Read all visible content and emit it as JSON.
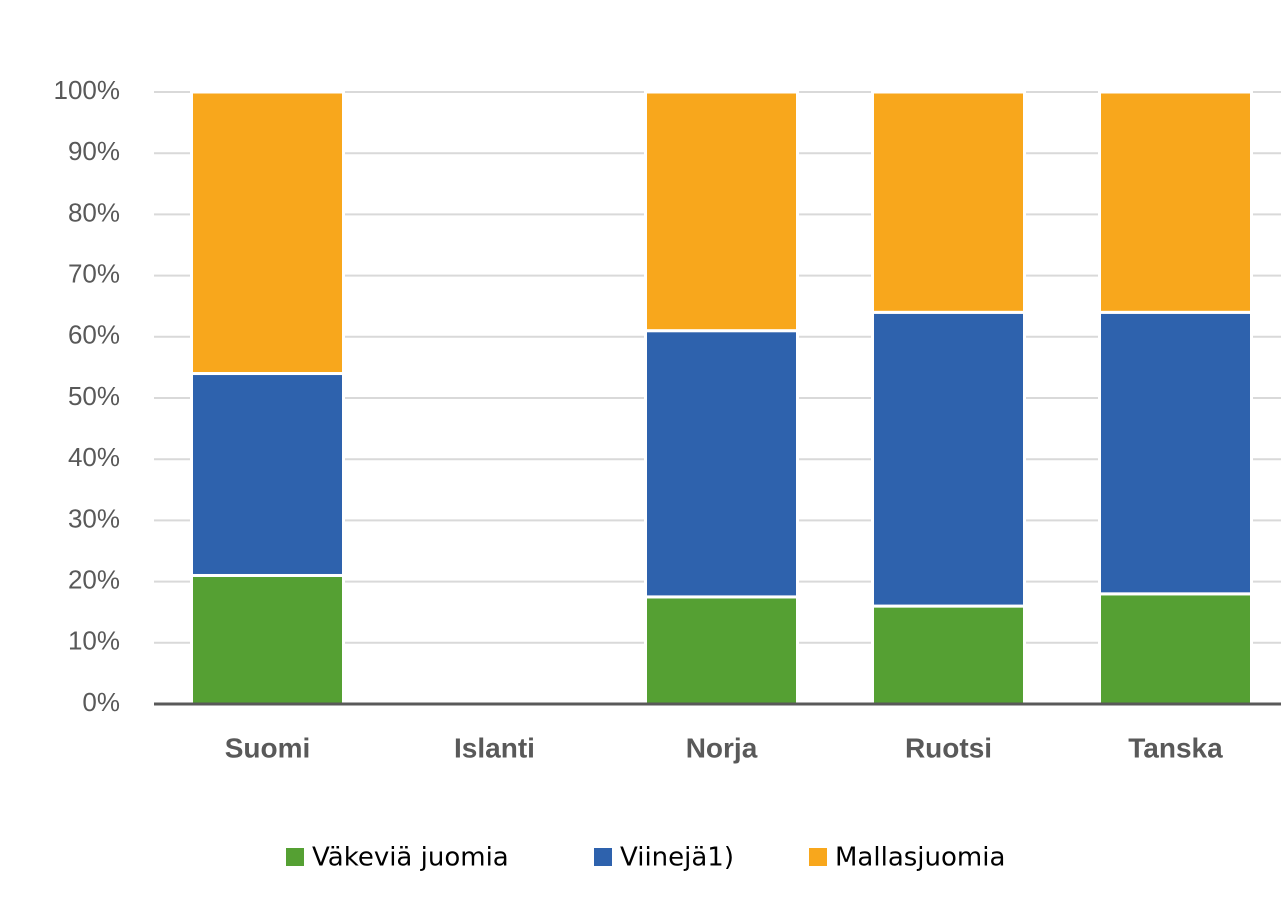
{
  "chart_data": {
    "type": "stacked_bar",
    "categories": [
      "Suomi",
      "Islanti",
      "Norja",
      "Ruotsi",
      "Tanska"
    ],
    "series": [
      {
        "name": "Väkeviä juomia",
        "color": "#55a033",
        "values": [
          21,
          null,
          17.5,
          16,
          18
        ]
      },
      {
        "name": "Viinejä1)",
        "color": "#2e62ad",
        "values": [
          33,
          null,
          43.5,
          48,
          46
        ]
      },
      {
        "name": "Mallasjuomia",
        "color": "#f8a71c",
        "values": [
          46,
          null,
          39,
          36,
          36
        ]
      }
    ],
    "ylim": [
      0,
      100
    ],
    "yticks": [
      {
        "value": 0,
        "label": "0%"
      },
      {
        "value": 10,
        "label": "10%"
      },
      {
        "value": 20,
        "label": "20%"
      },
      {
        "value": 30,
        "label": "30%"
      },
      {
        "value": 40,
        "label": "40%"
      },
      {
        "value": 50,
        "label": "50%"
      },
      {
        "value": 60,
        "label": "60%"
      },
      {
        "value": 70,
        "label": "70%"
      },
      {
        "value": 80,
        "label": "80%"
      },
      {
        "value": 90,
        "label": "90%"
      },
      {
        "value": 100,
        "label": "100%"
      }
    ],
    "grid": true,
    "legend": "bottom"
  }
}
